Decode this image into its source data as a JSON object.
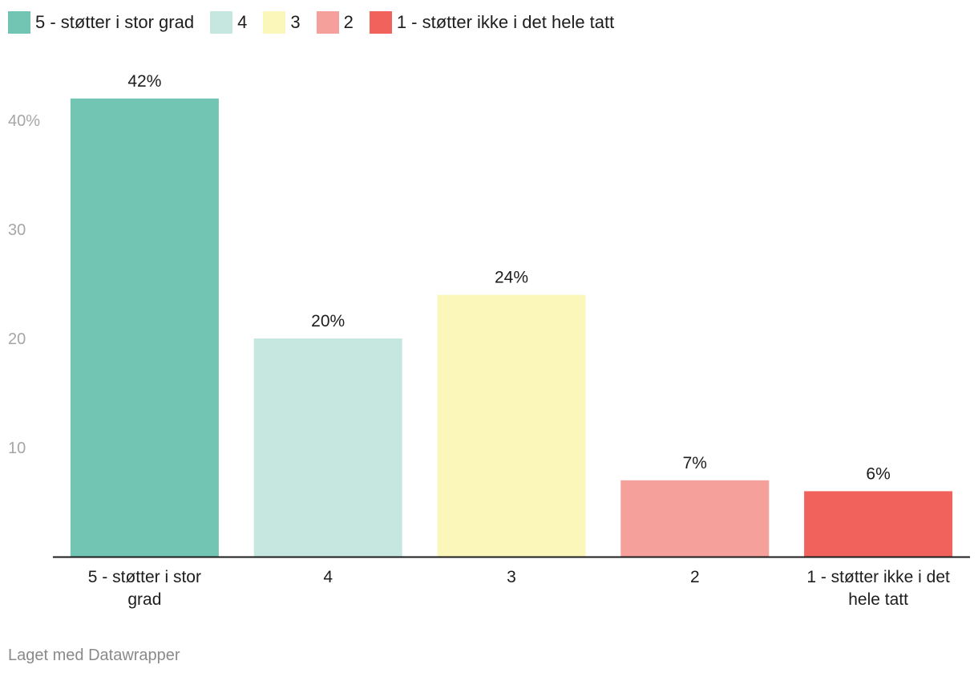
{
  "legend": [
    {
      "label": "5 - støtter i stor grad",
      "color": "#72c4b3"
    },
    {
      "label": "4",
      "color": "#c6e7e0"
    },
    {
      "label": "3",
      "color": "#fbf7ba"
    },
    {
      "label": "2",
      "color": "#f6a09b"
    },
    {
      "label": "1 - støtter ikke i det hele tatt",
      "color": "#f0625b"
    }
  ],
  "footer": "Laget med Datawrapper",
  "chart_data": {
    "type": "bar",
    "categories": [
      [
        "5 - støtter i stor",
        "grad"
      ],
      [
        "4"
      ],
      [
        "3"
      ],
      [
        "2"
      ],
      [
        "1 - støtter ikke i det",
        "hele tatt"
      ]
    ],
    "values": [
      42,
      20,
      24,
      7,
      6
    ],
    "data_labels": [
      "42%",
      "20%",
      "24%",
      "7%",
      "6%"
    ],
    "colors": [
      "#72c4b3",
      "#c6e7e0",
      "#fbf7ba",
      "#f6a09b",
      "#f0625b"
    ],
    "y_ticks": [
      {
        "value": 10,
        "label": "10"
      },
      {
        "value": 20,
        "label": "20"
      },
      {
        "value": 30,
        "label": "30"
      },
      {
        "value": 40,
        "label": "40%"
      }
    ],
    "ylim": [
      0,
      42
    ],
    "grid": false,
    "legend_position": "top-left"
  }
}
